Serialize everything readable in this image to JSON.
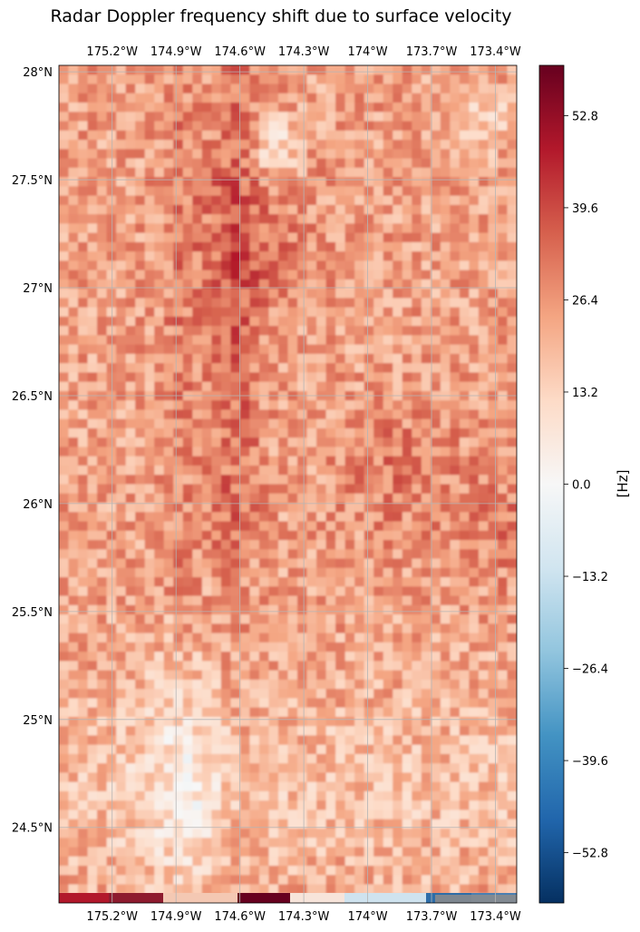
{
  "chart_data": {
    "type": "heatmap",
    "title": "Radar Doppler frequency shift due to surface velocity",
    "colorbar_label": "[Hz]",
    "colormap": "RdBu_r",
    "colorbar_range": [
      -60,
      60
    ],
    "colorbar_ticks": [
      "52.8",
      "39.6",
      "26.4",
      "13.2",
      "0.0",
      "−13.2",
      "−26.4",
      "−39.6",
      "−52.8"
    ],
    "colorbar_tick_values": [
      52.8,
      39.6,
      26.4,
      13.2,
      0.0,
      -13.2,
      -26.4,
      -39.6,
      -52.8
    ],
    "lon_range": [
      -175.45,
      -173.3
    ],
    "lat_range": [
      24.15,
      28.03
    ],
    "lon_ticks": [
      "175.2°W",
      "174.9°W",
      "174.6°W",
      "174.3°W",
      "174°W",
      "173.7°W",
      "173.4°W"
    ],
    "lon_tick_values": [
      -175.2,
      -174.9,
      -174.6,
      -174.3,
      -174.0,
      -173.7,
      -173.4
    ],
    "lat_ticks": [
      "28°N",
      "27.5°N",
      "27°N",
      "26.5°N",
      "26°N",
      "25.5°N",
      "25°N",
      "24.5°N"
    ],
    "lat_tick_values": [
      28.0,
      27.5,
      27.0,
      26.5,
      26.0,
      25.5,
      25.0,
      24.5
    ],
    "gridlines": true,
    "field_summary": {
      "typical_range": [
        10,
        45
      ],
      "max_region": "near 174.6°W, 27.0°N–27.5°N",
      "min_region": "bottom edge near 173.6°W–173.3°W (negative values)"
    }
  }
}
